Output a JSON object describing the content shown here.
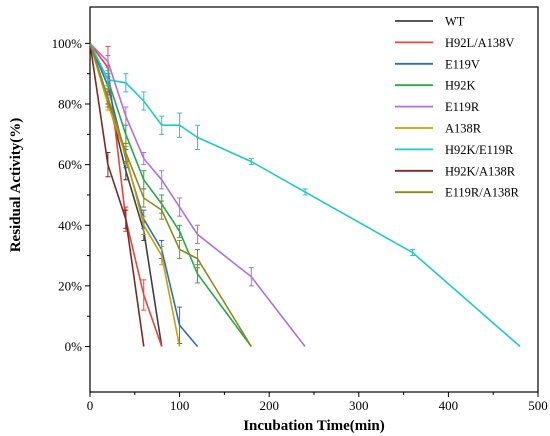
{
  "chart_data": {
    "type": "line",
    "xlabel": "Incubation Time(min)",
    "ylabel": "Residual Activity(%)",
    "xlim": [
      0,
      500
    ],
    "ylim": [
      -15,
      112
    ],
    "x_ticks": [
      0,
      100,
      200,
      300,
      400,
      500
    ],
    "x_tick_labels": [
      "0",
      "100",
      "200",
      "300",
      "400",
      "500"
    ],
    "y_ticks": [
      0,
      20,
      40,
      60,
      80,
      100
    ],
    "y_tick_labels": [
      "0%",
      "20%",
      "40%",
      "60%",
      "80%",
      "100%"
    ],
    "grid": false,
    "legend_position": "top-right",
    "series": [
      {
        "name": "WT",
        "color": "#404040",
        "x": [
          0,
          20,
          40,
          60,
          80
        ],
        "y": [
          100,
          82,
          58,
          38,
          0
        ],
        "err": [
          0,
          2,
          3,
          3,
          0
        ]
      },
      {
        "name": "H92L/A138V",
        "color": "#e8453c",
        "x": [
          0,
          20,
          40,
          60,
          80
        ],
        "y": [
          100,
          92,
          42,
          17,
          0
        ],
        "err": [
          0,
          7,
          4,
          5,
          0
        ]
      },
      {
        "name": "E119V",
        "color": "#2a6ebb",
        "x": [
          0,
          20,
          40,
          60,
          80,
          100,
          120
        ],
        "y": [
          100,
          86,
          62,
          42,
          32,
          7,
          0
        ],
        "err": [
          0,
          3,
          3,
          3,
          3,
          6,
          0
        ]
      },
      {
        "name": "H92K",
        "color": "#2aa64f",
        "x": [
          0,
          20,
          40,
          60,
          80,
          100,
          120,
          180
        ],
        "y": [
          100,
          88,
          70,
          55,
          47,
          38,
          24,
          0
        ],
        "err": [
          0,
          2,
          3,
          3,
          3,
          2,
          3,
          0
        ]
      },
      {
        "name": "E119R",
        "color": "#b06fdb",
        "x": [
          0,
          20,
          40,
          60,
          80,
          100,
          120,
          180,
          240
        ],
        "y": [
          100,
          94,
          76,
          62,
          55,
          46,
          37,
          23,
          0
        ],
        "err": [
          0,
          2,
          3,
          2,
          3,
          3,
          3,
          3,
          0
        ]
      },
      {
        "name": "A138R",
        "color": "#c9a000",
        "x": [
          0,
          20,
          40,
          60,
          80,
          100
        ],
        "y": [
          100,
          80,
          63,
          40,
          30,
          0
        ],
        "err": [
          0,
          2,
          3,
          3,
          3,
          0
        ]
      },
      {
        "name": "H92K/E119R",
        "color": "#22c7c7",
        "x": [
          0,
          20,
          40,
          60,
          80,
          100,
          120,
          180,
          240,
          360,
          480
        ],
        "y": [
          100,
          88,
          87,
          81,
          73,
          73,
          69,
          61,
          51,
          31,
          0
        ],
        "err": [
          0,
          3,
          3,
          3,
          3,
          4,
          4,
          1,
          1,
          1,
          0
        ]
      },
      {
        "name": "H92K/A138R",
        "color": "#7a2a2a",
        "x": [
          0,
          20,
          40,
          60
        ],
        "y": [
          100,
          60,
          42,
          0
        ],
        "err": [
          0,
          4,
          3,
          0
        ]
      },
      {
        "name": "E119R/A138R",
        "color": "#8a8a1f",
        "x": [
          0,
          20,
          40,
          60,
          80,
          100,
          120,
          180
        ],
        "y": [
          100,
          82,
          64,
          49,
          45,
          32,
          29,
          0
        ],
        "err": [
          0,
          3,
          3,
          3,
          3,
          3,
          3,
          0
        ]
      }
    ]
  }
}
